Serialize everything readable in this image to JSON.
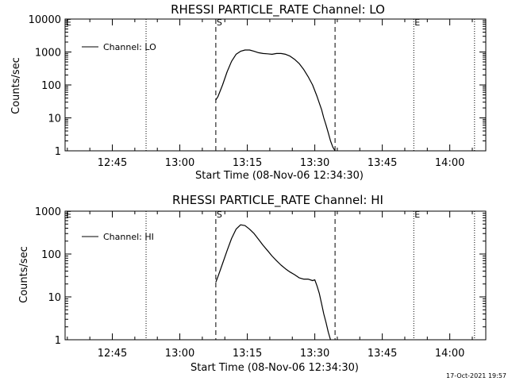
{
  "footer": {
    "timestamp": "17-Oct-2021 19:57"
  },
  "chart_data": [
    {
      "type": "line",
      "title": "RHESSI PARTICLE_RATE Channel: LO",
      "xlabel": "Start Time (08-Nov-06 12:34:30)",
      "ylabel": "Counts/sec",
      "y_scale": "log",
      "ylim": [
        1,
        10000
      ],
      "xlim": [
        "12:34:30",
        "14:08:00"
      ],
      "ytick_labels": [
        "1",
        "10",
        "100",
        "1000",
        "10000"
      ],
      "xtick_labels": [
        "12:45",
        "13:00",
        "13:15",
        "13:30",
        "13:45",
        "14:00"
      ],
      "legend": {
        "placement": "top-left",
        "entries": [
          "Channel: LO"
        ]
      },
      "markers": [
        {
          "time": "12:34:30",
          "style": "dotted",
          "label": "E"
        },
        {
          "time": "12:52:30",
          "style": "dotted",
          "label": ""
        },
        {
          "time": "13:08:00",
          "style": "dashed",
          "label": "S"
        },
        {
          "time": "13:34:30",
          "style": "dashed",
          "label": ""
        },
        {
          "time": "13:52:00",
          "style": "dotted",
          "label": "E"
        },
        {
          "time": "14:05:30",
          "style": "dotted",
          "label": ""
        }
      ],
      "series": [
        {
          "name": "Channel: LO",
          "x": [
            "13:08:00",
            "13:08:30",
            "13:09:30",
            "13:10:30",
            "13:11:30",
            "13:12:30",
            "13:13:30",
            "13:14:30",
            "13:15:30",
            "13:16:30",
            "13:17:30",
            "13:18:30",
            "13:19:30",
            "13:20:30",
            "13:21:30",
            "13:22:30",
            "13:23:30",
            "13:24:30",
            "13:25:30",
            "13:26:30",
            "13:27:30",
            "13:28:30",
            "13:29:30",
            "13:30:30",
            "13:31:00",
            "13:31:30",
            "13:32:00",
            "13:32:30",
            "13:33:00",
            "13:33:30",
            "13:34:00",
            "13:34:30"
          ],
          "y": [
            35,
            45,
            100,
            250,
            520,
            850,
            1050,
            1150,
            1150,
            1050,
            950,
            900,
            880,
            850,
            900,
            900,
            850,
            750,
            600,
            450,
            300,
            180,
            100,
            45,
            28,
            18,
            10,
            6,
            3.5,
            2,
            1.3,
            1
          ]
        }
      ]
    },
    {
      "type": "line",
      "title": "RHESSI PARTICLE_RATE Channel: HI",
      "xlabel": "Start Time (08-Nov-06 12:34:30)",
      "ylabel": "Counts/sec",
      "y_scale": "log",
      "ylim": [
        1,
        1000
      ],
      "xlim": [
        "12:34:30",
        "14:08:00"
      ],
      "ytick_labels": [
        "1",
        "10",
        "100",
        "1000"
      ],
      "xtick_labels": [
        "12:45",
        "13:00",
        "13:15",
        "13:30",
        "13:45",
        "14:00"
      ],
      "legend": {
        "placement": "top-left",
        "entries": [
          "Channel: HI"
        ]
      },
      "markers": [
        {
          "time": "12:34:30",
          "style": "dotted",
          "label": "E"
        },
        {
          "time": "12:52:30",
          "style": "dotted",
          "label": ""
        },
        {
          "time": "13:08:00",
          "style": "dashed",
          "label": "S"
        },
        {
          "time": "13:34:30",
          "style": "dashed",
          "label": ""
        },
        {
          "time": "13:52:00",
          "style": "dotted",
          "label": "E"
        },
        {
          "time": "14:05:30",
          "style": "dotted",
          "label": ""
        }
      ],
      "series": [
        {
          "name": "Channel: HI",
          "x": [
            "13:08:00",
            "13:08:30",
            "13:09:30",
            "13:10:30",
            "13:11:30",
            "13:12:30",
            "13:13:30",
            "13:14:30",
            "13:15:30",
            "13:16:30",
            "13:17:30",
            "13:18:30",
            "13:19:30",
            "13:20:30",
            "13:21:30",
            "13:22:30",
            "13:23:30",
            "13:24:30",
            "13:25:30",
            "13:26:30",
            "13:27:30",
            "13:28:30",
            "13:29:30",
            "13:30:00",
            "13:30:30",
            "13:31:00",
            "13:31:30",
            "13:32:00",
            "13:32:30",
            "13:33:00",
            "13:33:30"
          ],
          "y": [
            22,
            30,
            60,
            120,
            230,
            380,
            480,
            460,
            380,
            300,
            220,
            160,
            120,
            90,
            70,
            55,
            45,
            38,
            33,
            28,
            26,
            26,
            24,
            25,
            18,
            12,
            7,
            4,
            2.5,
            1.5,
            1
          ]
        }
      ]
    }
  ]
}
